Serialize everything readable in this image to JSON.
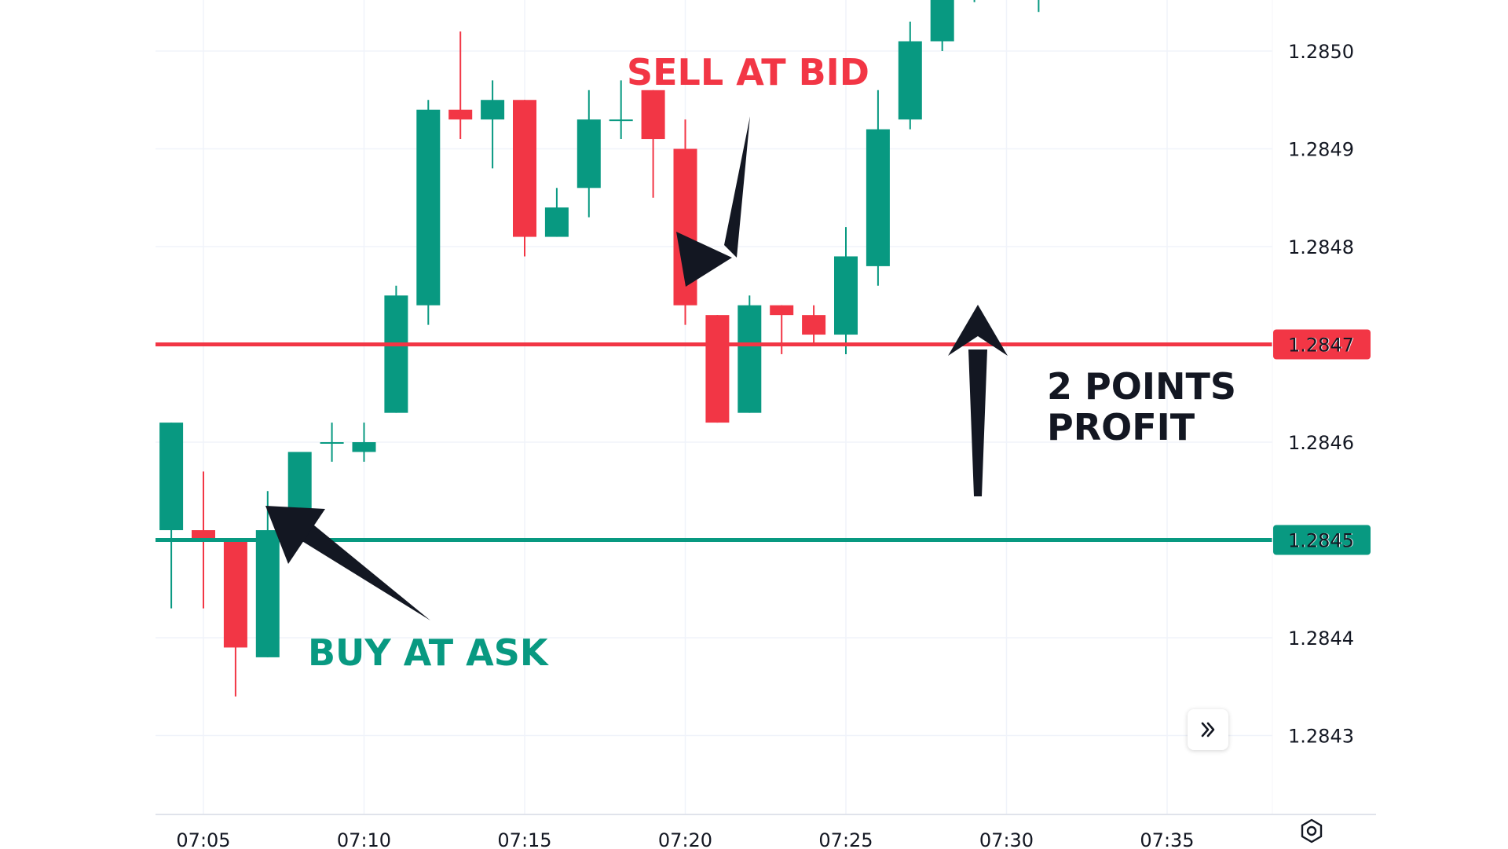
{
  "chart_data": {
    "type": "candlestick",
    "title": "",
    "xlabel": "",
    "ylabel": "",
    "ylim": [
      1.28422,
      1.28505
    ],
    "y_ticks": [
      "1.2850",
      "1.2849",
      "1.2848",
      "1.2847",
      "1.2846",
      "1.2845",
      "1.2844",
      "1.2843"
    ],
    "y_tick_values": [
      1.285,
      1.2849,
      1.2848,
      1.2847,
      1.2846,
      1.2845,
      1.2844,
      1.2843
    ],
    "x_ticks": [
      "07:05",
      "07:10",
      "07:15",
      "07:20",
      "07:25",
      "07:30",
      "07:35"
    ],
    "x_tick_values": [
      5,
      10,
      15,
      20,
      25,
      30,
      35
    ],
    "grid": true,
    "candles": [
      {
        "t": 4,
        "open": 1.28451,
        "close": 1.28462,
        "high": 1.28462,
        "low": 1.28443
      },
      {
        "t": 5,
        "open": 1.28451,
        "close": 1.2845,
        "high": 1.28457,
        "low": 1.28443
      },
      {
        "t": 6,
        "open": 1.2845,
        "close": 1.28439,
        "high": 1.2845,
        "low": 1.28434
      },
      {
        "t": 7,
        "open": 1.28438,
        "close": 1.28451,
        "high": 1.28455,
        "low": 1.28438
      },
      {
        "t": 8,
        "open": 1.28452,
        "close": 1.28459,
        "high": 1.28459,
        "low": 1.2845
      },
      {
        "t": 9,
        "open": 1.2846,
        "close": 1.2846,
        "high": 1.28462,
        "low": 1.28458
      },
      {
        "t": 10,
        "open": 1.28459,
        "close": 1.2846,
        "high": 1.28462,
        "low": 1.28458
      },
      {
        "t": 11,
        "open": 1.28463,
        "close": 1.28475,
        "high": 1.28476,
        "low": 1.28463
      },
      {
        "t": 12,
        "open": 1.28474,
        "close": 1.28494,
        "high": 1.28495,
        "low": 1.28472
      },
      {
        "t": 13,
        "open": 1.28494,
        "close": 1.28493,
        "high": 1.28502,
        "low": 1.28491
      },
      {
        "t": 14,
        "open": 1.28493,
        "close": 1.28495,
        "high": 1.28497,
        "low": 1.28488
      },
      {
        "t": 15,
        "open": 1.28495,
        "close": 1.28481,
        "high": 1.28495,
        "low": 1.28479
      },
      {
        "t": 16,
        "open": 1.28481,
        "close": 1.28484,
        "high": 1.28486,
        "low": 1.28481
      },
      {
        "t": 17,
        "open": 1.28486,
        "close": 1.28493,
        "high": 1.28496,
        "low": 1.28483
      },
      {
        "t": 18,
        "open": 1.28493,
        "close": 1.28493,
        "high": 1.28497,
        "low": 1.28491
      },
      {
        "t": 19,
        "open": 1.28496,
        "close": 1.28491,
        "high": 1.28496,
        "low": 1.28485
      },
      {
        "t": 20,
        "open": 1.2849,
        "close": 1.28474,
        "high": 1.28493,
        "low": 1.28472
      },
      {
        "t": 21,
        "open": 1.28473,
        "close": 1.28462,
        "high": 1.28473,
        "low": 1.28462
      },
      {
        "t": 22,
        "open": 1.28463,
        "close": 1.28474,
        "high": 1.28475,
        "low": 1.28463
      },
      {
        "t": 23,
        "open": 1.28474,
        "close": 1.28473,
        "high": 1.28474,
        "low": 1.28469
      },
      {
        "t": 24,
        "open": 1.28473,
        "close": 1.28471,
        "high": 1.28474,
        "low": 1.2847
      },
      {
        "t": 25,
        "open": 1.28471,
        "close": 1.28479,
        "high": 1.28482,
        "low": 1.28469
      },
      {
        "t": 26,
        "open": 1.28478,
        "close": 1.28492,
        "high": 1.28496,
        "low": 1.28476
      },
      {
        "t": 27,
        "open": 1.28493,
        "close": 1.28501,
        "high": 1.28503,
        "low": 1.28492
      },
      {
        "t": 28,
        "open": 1.28501,
        "close": 1.2851,
        "high": 1.2851,
        "low": 1.285
      },
      {
        "t": 29,
        "open": 1.28506,
        "close": 1.28506,
        "high": 1.28506,
        "low": 1.28505
      },
      {
        "t": 31,
        "open": 1.28506,
        "close": 1.28506,
        "high": 1.28506,
        "low": 1.28504
      }
    ],
    "lines": [
      {
        "price": 1.2847,
        "label": "1.2847",
        "color": "#f23645"
      },
      {
        "price": 1.2845,
        "label": "1.2845",
        "color": "#089981"
      }
    ],
    "annotations": [
      {
        "text_lines": [
          "SELL AT BID"
        ],
        "color": "#f23645"
      },
      {
        "text_lines": [
          "BUY AT ASK"
        ],
        "color": "#089981"
      },
      {
        "text_lines": [
          "2 POINTS",
          "PROFIT"
        ],
        "color": "#131722"
      }
    ],
    "colors": {
      "up": "#089981",
      "down": "#f23645",
      "arrow": "#131722",
      "grid": "#f0f3fa"
    }
  },
  "icons": {
    "scroll": "double-chevron-right-icon",
    "settings": "hexagon-settings-icon"
  }
}
